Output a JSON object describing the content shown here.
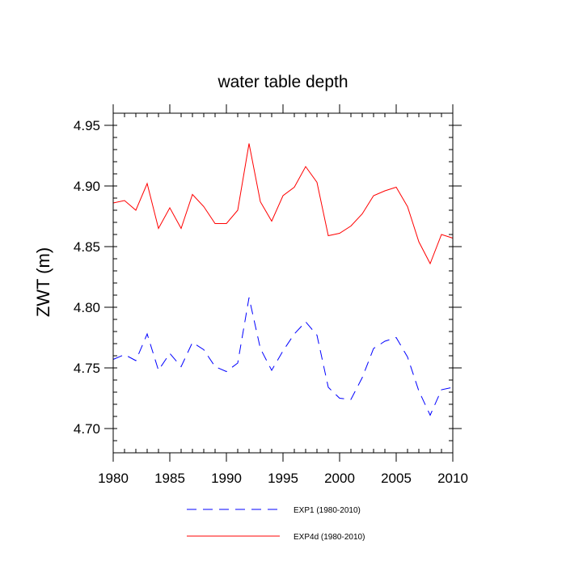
{
  "chart_data": {
    "type": "line",
    "title": "water table depth",
    "xlabel": "",
    "ylabel": "ZWT  (m)",
    "xlim": [
      1980,
      2010
    ],
    "ylim": [
      4.68,
      4.96
    ],
    "x_ticks": [
      1980,
      1985,
      1990,
      1995,
      2000,
      2005,
      2010
    ],
    "x_tick_labels": [
      "1980",
      "1985",
      "1990",
      "1995",
      "2000",
      "2005",
      "2010"
    ],
    "y_ticks": [
      4.7,
      4.75,
      4.8,
      4.85,
      4.9,
      4.95
    ],
    "y_tick_labels": [
      "4.70",
      "4.75",
      "4.80",
      "4.85",
      "4.90",
      "4.95"
    ],
    "legend_position": "bottom",
    "x": [
      1980,
      1981,
      1982,
      1983,
      1984,
      1985,
      1986,
      1987,
      1988,
      1989,
      1990,
      1991,
      1992,
      1993,
      1994,
      1995,
      1996,
      1997,
      1998,
      1999,
      2000,
      2001,
      2002,
      2003,
      2004,
      2005,
      2006,
      2007,
      2008,
      2009,
      2010
    ],
    "series": [
      {
        "name": "EXP1 (1980-2010)",
        "color": "#0000ff",
        "dash": "dashed",
        "values": [
          4.757,
          4.761,
          4.756,
          4.778,
          4.748,
          4.762,
          4.751,
          4.771,
          4.765,
          4.751,
          4.747,
          4.754,
          4.808,
          4.766,
          4.748,
          4.764,
          4.778,
          4.788,
          4.777,
          4.734,
          4.725,
          4.724,
          4.742,
          4.766,
          4.772,
          4.775,
          4.759,
          4.731,
          4.711,
          4.732,
          4.734
        ]
      },
      {
        "name": "EXP4d (1980-2010)",
        "color": "#ff0000",
        "dash": "solid",
        "values": [
          4.886,
          4.888,
          4.88,
          4.902,
          4.865,
          4.882,
          4.865,
          4.893,
          4.883,
          4.869,
          4.869,
          4.88,
          4.935,
          4.887,
          4.871,
          4.892,
          4.899,
          4.916,
          4.903,
          4.859,
          4.861,
          4.867,
          4.877,
          4.892,
          4.896,
          4.899,
          4.883,
          4.854,
          4.836,
          4.86,
          4.857
        ]
      }
    ]
  }
}
